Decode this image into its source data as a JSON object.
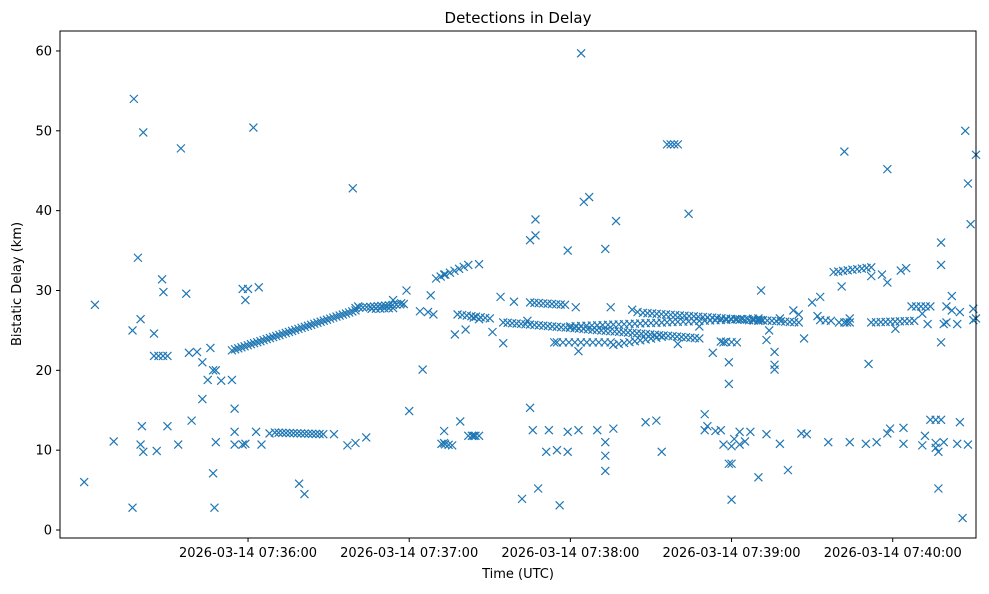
{
  "chart_data": {
    "type": "scatter",
    "title": "Detections in Delay",
    "xlabel": "Time (UTC)",
    "ylabel": "Bistatic Delay (km)",
    "marker": "x",
    "color": "#1f77b4",
    "x_unit": "seconds after 2026-03-14 07:35:00",
    "xlim": [
      -10,
      331
    ],
    "ylim": [
      -1,
      62.5
    ],
    "x_ticks": [
      {
        "value": 60,
        "label": "2026-03-14 07:36:00"
      },
      {
        "value": 120,
        "label": "2026-03-14 07:37:00"
      },
      {
        "value": 180,
        "label": "2026-03-14 07:38:00"
      },
      {
        "value": 240,
        "label": "2026-03-14 07:39:00"
      },
      {
        "value": 300,
        "label": "2026-03-14 07:40:00"
      }
    ],
    "y_ticks": [
      {
        "value": 0,
        "label": "0"
      },
      {
        "value": 10,
        "label": "10"
      },
      {
        "value": 20,
        "label": "20"
      },
      {
        "value": 30,
        "label": "30"
      },
      {
        "value": 40,
        "label": "40"
      },
      {
        "value": 50,
        "label": "50"
      },
      {
        "value": 60,
        "label": "60"
      }
    ],
    "tracks": [
      {
        "t0": 54,
        "t1": 100,
        "y0": 22.5,
        "y1": 27.5,
        "n": 40
      },
      {
        "t0": 100,
        "t1": 118,
        "y0": 27.8,
        "y1": 28.3,
        "n": 14
      },
      {
        "t0": 130,
        "t1": 142,
        "y0": 31.5,
        "y1": 33.2,
        "n": 8
      },
      {
        "t0": 138,
        "t1": 150,
        "y0": 27.0,
        "y1": 26.5,
        "n": 8
      },
      {
        "t0": 155,
        "t1": 228,
        "y0": 26.0,
        "y1": 24.0,
        "n": 45
      },
      {
        "t0": 180,
        "t1": 250,
        "y0": 25.5,
        "y1": 26.5,
        "n": 36
      },
      {
        "t0": 207,
        "t1": 250,
        "y0": 27.2,
        "y1": 26.2,
        "n": 26
      },
      {
        "t0": 165,
        "t1": 178,
        "y0": 28.5,
        "y1": 28.2,
        "n": 9
      },
      {
        "t0": 175,
        "t1": 195,
        "y0": 23.5,
        "y1": 23.5,
        "n": 10
      },
      {
        "t0": 196,
        "t1": 214,
        "y0": 23.2,
        "y1": 24.2,
        "n": 10
      },
      {
        "t0": 250,
        "t1": 265,
        "y0": 26.3,
        "y1": 26.0,
        "n": 10
      },
      {
        "t0": 278,
        "t1": 292,
        "y0": 32.3,
        "y1": 32.9,
        "n": 9
      },
      {
        "t0": 292,
        "t1": 308,
        "y0": 26.0,
        "y1": 26.2,
        "n": 10
      },
      {
        "t0": 307,
        "t1": 314,
        "y0": 28.0,
        "y1": 28.0,
        "n": 5
      },
      {
        "t0": 70,
        "t1": 88,
        "y0": 12.2,
        "y1": 12.0,
        "n": 14
      },
      {
        "t0": 132,
        "t1": 136,
        "y0": 10.8,
        "y1": 10.6,
        "n": 4
      },
      {
        "t0": 142,
        "t1": 146,
        "y0": 11.8,
        "y1": 11.8,
        "n": 4
      },
      {
        "t0": 25,
        "t1": 30,
        "y0": 21.8,
        "y1": 21.8,
        "n": 4
      },
      {
        "t0": 106,
        "t1": 114,
        "y0": 27.7,
        "y1": 27.8,
        "n": 6
      },
      {
        "t0": 236,
        "t1": 242,
        "y0": 23.6,
        "y1": 23.5,
        "n": 4
      },
      {
        "t0": 216,
        "t1": 220,
        "y0": 48.3,
        "y1": 48.3,
        "n": 4
      },
      {
        "t0": 314,
        "t1": 318,
        "y0": 13.8,
        "y1": 13.8,
        "n": 3
      },
      {
        "t0": 280,
        "t1": 284,
        "y0": 26.0,
        "y1": 26.0,
        "n": 3
      },
      {
        "t0": 273,
        "t1": 277,
        "y0": 26.3,
        "y1": 26.2,
        "n": 3
      }
    ],
    "points": [
      [
        -1,
        6
      ],
      [
        3,
        28.2
      ],
      [
        10,
        11.1
      ],
      [
        17,
        2.8
      ],
      [
        17,
        25
      ],
      [
        17.5,
        54
      ],
      [
        19,
        34.1
      ],
      [
        20,
        26.4
      ],
      [
        20,
        10.7
      ],
      [
        20.5,
        13
      ],
      [
        21,
        49.8
      ],
      [
        21,
        9.8
      ],
      [
        25,
        24.6
      ],
      [
        26,
        9.9
      ],
      [
        28,
        31.4
      ],
      [
        28.5,
        29.8
      ],
      [
        30,
        13
      ],
      [
        34,
        10.7
      ],
      [
        35,
        47.8
      ],
      [
        37,
        29.6
      ],
      [
        38,
        22.2
      ],
      [
        39,
        13.7
      ],
      [
        41,
        22.3
      ],
      [
        43,
        16.4
      ],
      [
        43,
        21
      ],
      [
        45,
        18.8
      ],
      [
        46,
        22.8
      ],
      [
        47,
        7.1
      ],
      [
        47,
        20
      ],
      [
        47.5,
        2.8
      ],
      [
        48,
        11
      ],
      [
        48,
        20
      ],
      [
        50,
        18.7
      ],
      [
        54,
        18.8
      ],
      [
        55,
        15.2
      ],
      [
        55,
        10.7
      ],
      [
        55,
        12.3
      ],
      [
        58,
        10.7
      ],
      [
        58,
        30.2
      ],
      [
        59,
        28.8
      ],
      [
        60,
        30.2
      ],
      [
        59,
        10.8
      ],
      [
        62,
        50.4
      ],
      [
        63,
        12.3
      ],
      [
        64,
        30.4
      ],
      [
        65,
        10.7
      ],
      [
        68,
        12.1
      ],
      [
        79,
        5.8
      ],
      [
        81,
        4.5
      ],
      [
        92,
        12
      ],
      [
        97,
        10.6
      ],
      [
        99,
        42.8
      ],
      [
        100,
        10.9
      ],
      [
        101,
        28
      ],
      [
        104,
        11.6
      ],
      [
        114,
        28.8
      ],
      [
        117,
        28.4
      ],
      [
        119,
        30
      ],
      [
        120,
        14.9
      ],
      [
        124,
        27.4
      ],
      [
        125,
        20.1
      ],
      [
        127,
        27.3
      ],
      [
        128,
        29.4
      ],
      [
        129,
        27
      ],
      [
        133,
        32
      ],
      [
        133,
        12.4
      ],
      [
        133,
        10.9
      ],
      [
        137,
        24.5
      ],
      [
        139,
        13.6
      ],
      [
        141,
        25.1
      ],
      [
        144,
        26.6
      ],
      [
        144,
        11.8
      ],
      [
        146,
        33.3
      ],
      [
        146,
        26.4
      ],
      [
        151,
        24.8
      ],
      [
        154,
        29.2
      ],
      [
        155,
        23.4
      ],
      [
        159,
        28.6
      ],
      [
        162,
        3.9
      ],
      [
        164,
        26.2
      ],
      [
        165,
        36.3
      ],
      [
        165,
        15.3
      ],
      [
        166,
        12.5
      ],
      [
        167,
        36.9
      ],
      [
        167,
        38.9
      ],
      [
        168,
        5.2
      ],
      [
        171,
        9.8
      ],
      [
        172,
        12.5
      ],
      [
        174,
        23.5
      ],
      [
        175,
        10
      ],
      [
        176,
        3.1
      ],
      [
        179,
        12.3
      ],
      [
        179,
        9.8
      ],
      [
        179,
        35
      ],
      [
        182,
        27.9
      ],
      [
        183,
        22.4
      ],
      [
        183,
        12.5
      ],
      [
        184,
        59.7
      ],
      [
        185,
        41.1
      ],
      [
        187,
        41.7
      ],
      [
        190,
        12.5
      ],
      [
        193,
        11
      ],
      [
        193,
        35.2
      ],
      [
        193,
        7.4
      ],
      [
        193,
        9.3
      ],
      [
        195,
        27.9
      ],
      [
        196,
        12.7
      ],
      [
        197,
        38.7
      ],
      [
        203,
        27.6
      ],
      [
        205,
        27.3
      ],
      [
        208,
        13.5
      ],
      [
        212,
        13.7
      ],
      [
        214,
        9.8
      ],
      [
        220,
        23.3
      ],
      [
        224,
        39.6
      ],
      [
        228,
        25.5
      ],
      [
        230,
        14.5
      ],
      [
        230,
        12.5
      ],
      [
        231,
        13
      ],
      [
        233,
        22.2
      ],
      [
        234,
        12.4
      ],
      [
        236,
        12.5
      ],
      [
        237,
        23.5
      ],
      [
        237,
        10.7
      ],
      [
        239,
        18.3
      ],
      [
        239,
        21
      ],
      [
        239,
        8.3
      ],
      [
        240,
        10.5
      ],
      [
        240,
        8.3
      ],
      [
        240,
        3.8
      ],
      [
        241,
        11.4
      ],
      [
        243,
        10.7
      ],
      [
        243,
        12.3
      ],
      [
        245,
        11.1
      ],
      [
        247,
        12.3
      ],
      [
        248,
        26.3
      ],
      [
        250,
        6.6
      ],
      [
        251,
        30
      ],
      [
        251,
        26.3
      ],
      [
        253,
        12
      ],
      [
        253,
        23.8
      ],
      [
        254,
        25
      ],
      [
        256,
        22.3
      ],
      [
        256,
        20.7
      ],
      [
        256,
        20.1
      ],
      [
        258,
        26.5
      ],
      [
        258,
        10.8
      ],
      [
        261,
        7.5
      ],
      [
        263,
        27.5
      ],
      [
        265,
        27
      ],
      [
        266,
        12.1
      ],
      [
        267,
        24
      ],
      [
        268,
        12
      ],
      [
        270,
        28.5
      ],
      [
        272,
        26.8
      ],
      [
        273,
        29.2
      ],
      [
        276,
        11
      ],
      [
        281,
        30.5
      ],
      [
        282,
        47.4
      ],
      [
        283,
        26
      ],
      [
        284,
        11
      ],
      [
        284,
        26.5
      ],
      [
        290,
        10.8
      ],
      [
        291,
        20.8
      ],
      [
        292,
        31.8
      ],
      [
        294,
        11
      ],
      [
        296,
        32
      ],
      [
        298,
        45.2
      ],
      [
        298,
        12.1
      ],
      [
        298,
        31
      ],
      [
        299,
        12.7
      ],
      [
        301,
        25.2
      ],
      [
        303,
        32.5
      ],
      [
        304,
        12.8
      ],
      [
        304,
        10.8
      ],
      [
        305,
        32.8
      ],
      [
        311,
        27.1
      ],
      [
        311,
        10.6
      ],
      [
        312,
        11.8
      ],
      [
        313,
        25.8
      ],
      [
        316,
        10.3
      ],
      [
        316,
        10.9
      ],
      [
        317,
        5.2
      ],
      [
        317,
        9.8
      ],
      [
        318,
        36
      ],
      [
        318,
        23.5
      ],
      [
        318,
        33.2
      ],
      [
        319,
        25.8
      ],
      [
        319,
        11
      ],
      [
        320,
        28
      ],
      [
        320,
        26
      ],
      [
        322,
        29.3
      ],
      [
        322,
        27.5
      ],
      [
        324,
        25.8
      ],
      [
        324,
        10.8
      ],
      [
        325,
        13.5
      ],
      [
        325,
        27.3
      ],
      [
        326,
        1.5
      ],
      [
        327,
        50
      ],
      [
        328,
        10.7
      ],
      [
        328,
        43.4
      ],
      [
        329,
        38.3
      ],
      [
        330,
        27.7
      ],
      [
        330,
        26.3
      ],
      [
        331,
        26.5
      ],
      [
        331,
        47
      ]
    ]
  }
}
